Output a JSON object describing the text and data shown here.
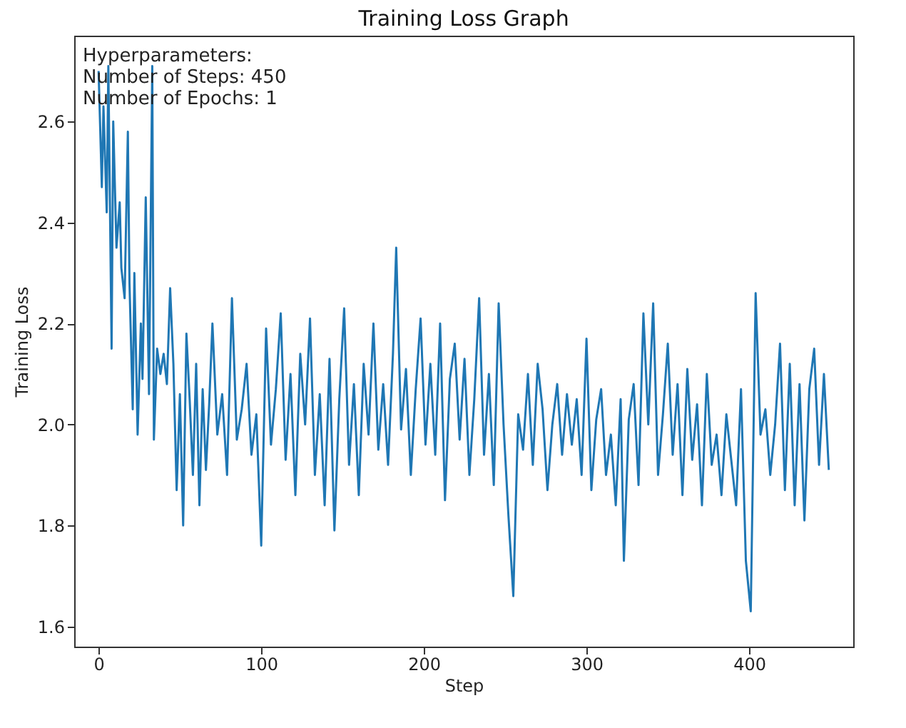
{
  "chart_data": {
    "type": "line",
    "title": "Training Loss Graph",
    "xlabel": "Step",
    "ylabel": "Training Loss",
    "annotations": [
      "Hyperparameters:\nNumber of Steps: 450\nNumber of Epochs: 1"
    ],
    "xlim": [
      -15,
      464
    ],
    "ylim": [
      1.56,
      2.77
    ],
    "xticks": [
      0,
      100,
      200,
      300,
      400
    ],
    "yticks": [
      1.6,
      1.8,
      {
        "value": 2,
        "label": "2.0"
      },
      2.2,
      2.4,
      2.6
    ],
    "grid": false,
    "series": [
      {
        "color": "#1f77b4",
        "x": [
          0,
          2,
          3,
          5,
          6,
          8,
          9,
          11,
          13,
          14,
          16,
          18,
          19,
          21,
          22,
          24,
          26,
          27,
          29,
          31,
          33,
          34,
          36,
          38,
          40,
          42,
          44,
          46,
          48,
          50,
          52,
          54,
          56,
          58,
          60,
          62,
          64,
          66,
          68,
          70,
          73,
          76,
          79,
          82,
          85,
          88,
          91,
          94,
          97,
          100,
          103,
          106,
          109,
          112,
          115,
          118,
          121,
          124,
          127,
          130,
          133,
          136,
          139,
          142,
          145,
          148,
          151,
          154,
          157,
          160,
          163,
          166,
          169,
          172,
          175,
          178,
          181,
          183,
          186,
          189,
          192,
          195,
          198,
          201,
          204,
          207,
          210,
          213,
          216,
          219,
          222,
          225,
          228,
          231,
          234,
          237,
          240,
          243,
          246,
          249,
          252,
          255,
          258,
          261,
          264,
          267,
          270,
          273,
          276,
          279,
          282,
          285,
          288,
          291,
          294,
          297,
          300,
          303,
          306,
          309,
          312,
          315,
          318,
          321,
          323,
          326,
          329,
          332,
          335,
          338,
          341,
          344,
          347,
          350,
          353,
          356,
          359,
          362,
          365,
          368,
          371,
          374,
          377,
          380,
          383,
          386,
          389,
          392,
          395,
          398,
          401,
          404,
          407,
          410,
          413,
          416,
          419,
          422,
          425,
          428,
          431,
          434,
          437,
          440,
          443,
          446,
          449
        ],
        "values": [
          2.7,
          2.47,
          2.63,
          2.42,
          2.71,
          2.15,
          2.6,
          2.35,
          2.44,
          2.31,
          2.25,
          2.58,
          2.28,
          2.03,
          2.3,
          1.98,
          2.2,
          2.09,
          2.45,
          2.06,
          2.71,
          1.97,
          2.15,
          2.1,
          2.14,
          2.08,
          2.27,
          2.12,
          1.87,
          2.06,
          1.8,
          2.18,
          2.05,
          1.9,
          2.12,
          1.84,
          2.07,
          1.91,
          2.04,
          2.2,
          1.98,
          2.06,
          1.9,
          2.25,
          1.97,
          2.03,
          2.12,
          1.94,
          2.02,
          1.76,
          2.19,
          1.96,
          2.07,
          2.22,
          1.93,
          2.1,
          1.86,
          2.14,
          2.0,
          2.21,
          1.9,
          2.06,
          1.84,
          2.13,
          1.79,
          2.05,
          2.23,
          1.92,
          2.08,
          1.86,
          2.12,
          1.98,
          2.2,
          1.95,
          2.08,
          1.92,
          2.14,
          2.35,
          1.99,
          2.11,
          1.9,
          2.07,
          2.21,
          1.96,
          2.12,
          1.94,
          2.2,
          1.85,
          2.09,
          2.16,
          1.97,
          2.13,
          1.9,
          2.05,
          2.25,
          1.94,
          2.1,
          1.88,
          2.24,
          2.0,
          1.82,
          1.66,
          2.02,
          1.95,
          2.1,
          1.92,
          2.12,
          2.03,
          1.87,
          2.0,
          2.08,
          1.94,
          2.06,
          1.96,
          2.05,
          1.9,
          2.17,
          1.87,
          2.01,
          2.07,
          1.9,
          1.98,
          1.84,
          2.05,
          1.73,
          2.01,
          2.08,
          1.88,
          2.22,
          2.0,
          2.24,
          1.9,
          2.02,
          2.16,
          1.94,
          2.08,
          1.86,
          2.11,
          1.93,
          2.04,
          1.84,
          2.1,
          1.92,
          1.98,
          1.86,
          2.02,
          1.93,
          1.84,
          2.07,
          1.73,
          1.63,
          2.26,
          1.98,
          2.03,
          1.9,
          2.0,
          2.16,
          1.87,
          2.12,
          1.84,
          2.08,
          1.81,
          2.07,
          2.15,
          1.92,
          2.1,
          1.91
        ]
      }
    ]
  }
}
